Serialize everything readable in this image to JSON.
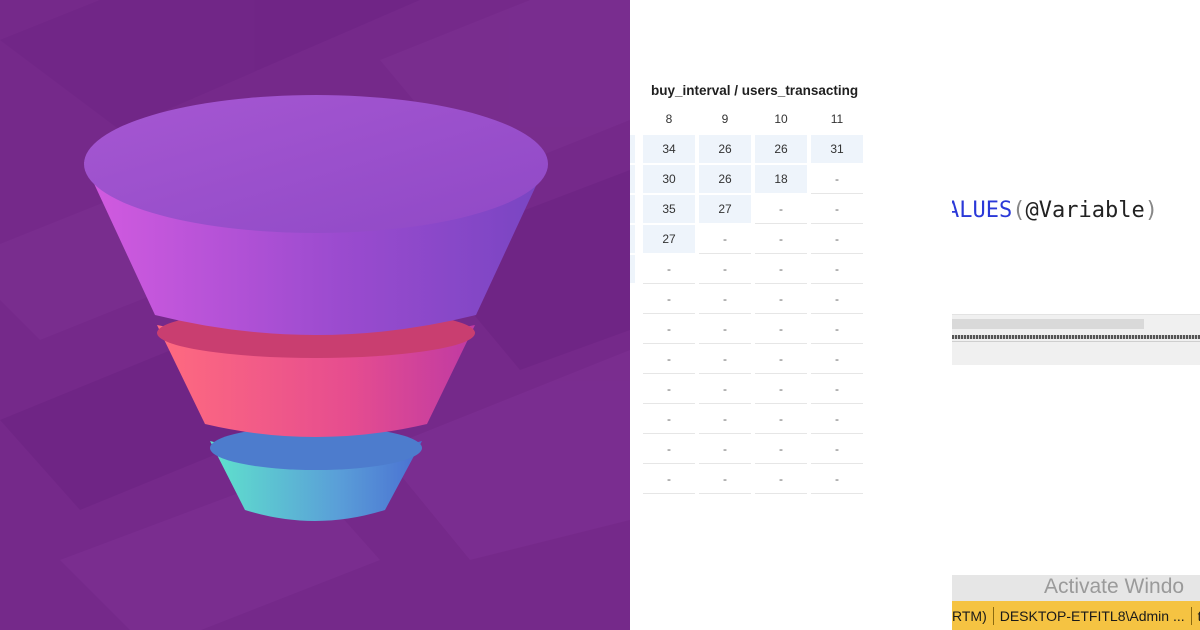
{
  "cohort_table": {
    "title": "buy_interval / users_transacting",
    "columns": [
      "8",
      "9",
      "10",
      "11"
    ],
    "rows": [
      [
        "34",
        "26",
        "26",
        "31"
      ],
      [
        "30",
        "26",
        "18",
        "-"
      ],
      [
        "35",
        "27",
        "-",
        "-"
      ],
      [
        "27",
        "-",
        "-",
        "-"
      ],
      [
        "-",
        "-",
        "-",
        "-"
      ],
      [
        "-",
        "-",
        "-",
        "-"
      ],
      [
        "-",
        "-",
        "-",
        "-"
      ],
      [
        "-",
        "-",
        "-",
        "-"
      ],
      [
        "-",
        "-",
        "-",
        "-"
      ],
      [
        "-",
        "-",
        "-",
        "-"
      ],
      [
        "-",
        "-",
        "-",
        "-"
      ],
      [
        "-",
        "-",
        "-",
        "-"
      ]
    ]
  },
  "code_editor": {
    "keyword_fragment": "ALUES",
    "open_paren": "(",
    "variable": "@Variable",
    "close_paren": ")"
  },
  "status": {
    "watermark": "Activate Windo",
    "version_fragment": "RTM)",
    "server": "DESKTOP-ETFITL8\\Admin ...",
    "trailing": "t"
  },
  "colors": {
    "funnel_background": "#75298a",
    "funnel_top": "#a24fd4",
    "funnel_middle": "#f5667a",
    "funnel_bottom": "#4fd3cd",
    "status_bar": "#f5c342",
    "keyword": "#2a38d8"
  }
}
